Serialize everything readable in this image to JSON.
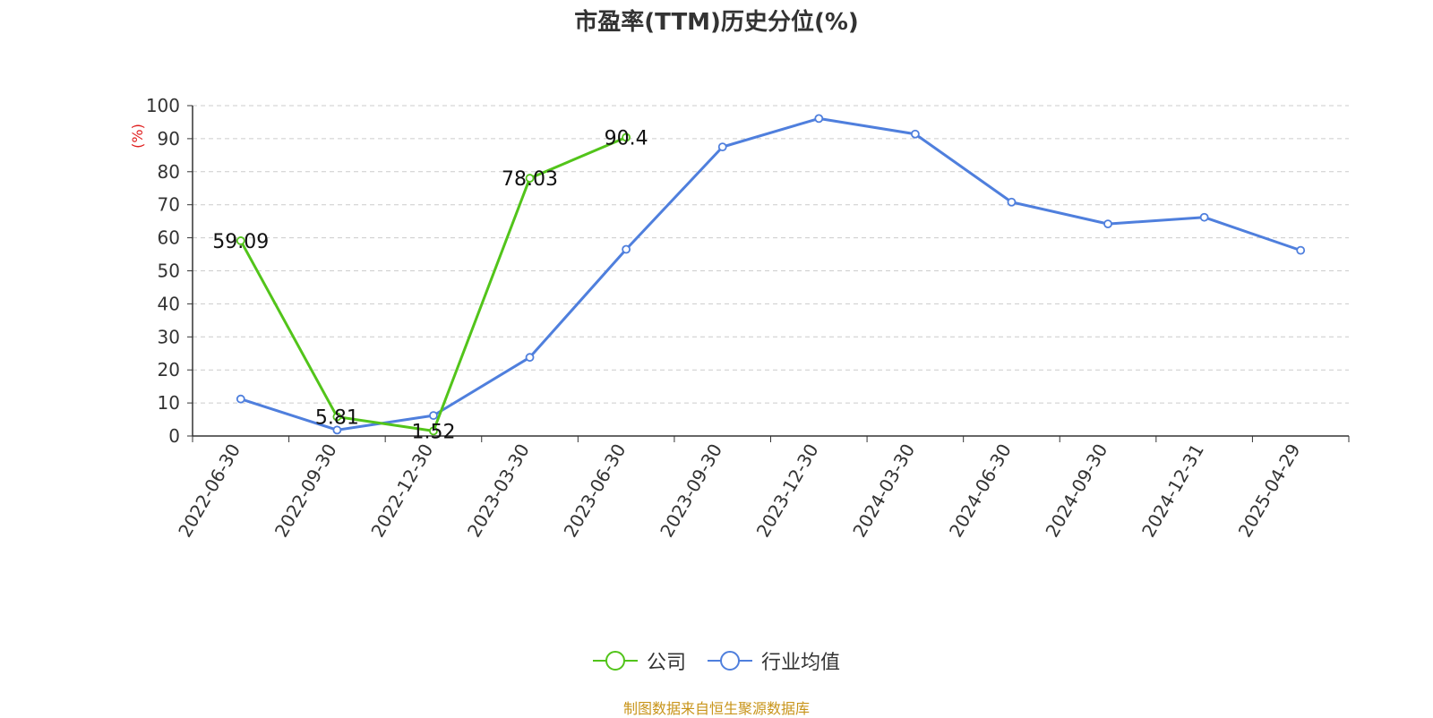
{
  "chart_data": {
    "type": "line",
    "title": "市盈率(TTM)历史分位(%)",
    "ylabel": "(%)",
    "ylim": [
      0,
      100
    ],
    "yticks": [
      0,
      10,
      20,
      30,
      40,
      50,
      60,
      70,
      80,
      90,
      100
    ],
    "categories": [
      "2022-06-30",
      "2022-09-30",
      "2022-12-30",
      "2023-03-30",
      "2023-06-30",
      "2023-09-30",
      "2023-12-30",
      "2024-03-30",
      "2024-06-30",
      "2024-09-30",
      "2024-12-31",
      "2025-04-29"
    ],
    "grid": true,
    "legend_position": "bottom",
    "series": [
      {
        "name": "公司",
        "color": "#52c41a",
        "values": [
          59.09,
          5.81,
          1.52,
          78.03,
          90.4,
          null,
          null,
          null,
          null,
          null,
          null,
          null
        ],
        "labels": [
          "59.09",
          "5.81",
          "1.52",
          "78.03",
          "90.4",
          null,
          null,
          null,
          null,
          null,
          null,
          null
        ]
      },
      {
        "name": "行业均值",
        "color": "#4f7fdd",
        "values": [
          11.2,
          1.8,
          6.2,
          23.8,
          56.5,
          87.5,
          96.1,
          91.4,
          70.8,
          64.2,
          66.2,
          56.2
        ]
      }
    ]
  },
  "source": {
    "text": "制图数据来自恒生聚源数据库",
    "color": "#c8941a"
  },
  "colors": {
    "axis": "#333333",
    "ylabel": "#e02020",
    "grid": "#cccccc"
  }
}
